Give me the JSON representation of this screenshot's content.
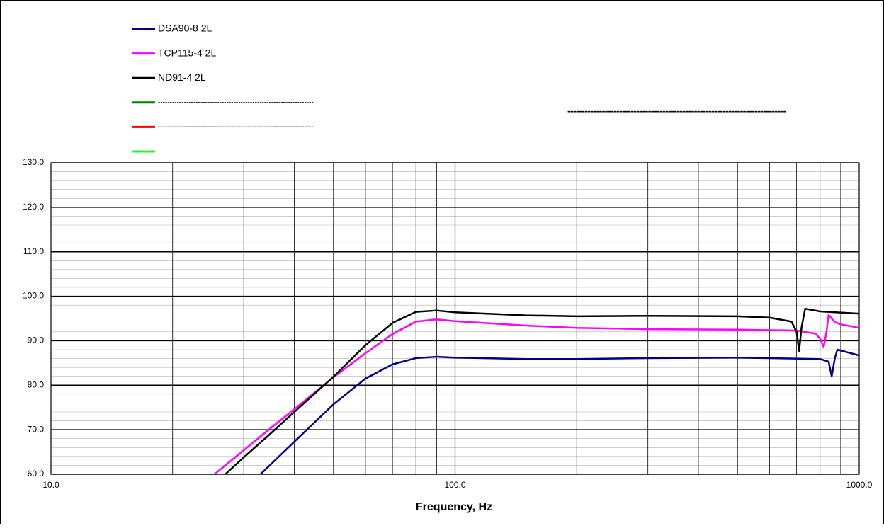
{
  "chart_data": {
    "type": "line",
    "xlabel": "Frequency, Hz",
    "annotation": "----------------------------------------------------------------------------",
    "xscale": "log",
    "grid": true,
    "xlim": [
      10,
      1000
    ],
    "xticks": [
      {
        "value": 10,
        "label": "10.0"
      },
      {
        "value": 100,
        "label": "100.0"
      },
      {
        "value": 1000,
        "label": "1000.0"
      }
    ],
    "xminorticks": [
      20,
      30,
      40,
      50,
      60,
      70,
      80,
      90,
      200,
      300,
      400,
      500,
      600,
      700,
      800,
      900
    ],
    "ylim": [
      60,
      130
    ],
    "yticks": [
      {
        "value": 60,
        "label": "60.0"
      },
      {
        "value": 70,
        "label": "70.0"
      },
      {
        "value": 80,
        "label": "80.0"
      },
      {
        "value": 90,
        "label": "90.0"
      },
      {
        "value": 100,
        "label": "100.0"
      },
      {
        "value": 110,
        "label": "110.0"
      },
      {
        "value": 120,
        "label": "120.0"
      },
      {
        "value": 130,
        "label": "130.0"
      }
    ],
    "yminorticks": [
      62,
      64,
      66,
      68,
      72,
      74,
      76,
      78,
      82,
      84,
      86,
      88,
      92,
      94,
      96,
      98,
      102,
      104,
      106,
      108,
      112,
      114,
      116,
      118,
      122,
      124,
      126,
      128
    ],
    "series": [
      {
        "name": "DSA90-8 2L",
        "color": "#000080",
        "x": [
          33,
          40,
          50,
          60,
          70,
          80,
          90,
          100,
          150,
          200,
          300,
          500,
          800,
          840,
          855,
          870,
          883,
          1000
        ],
        "values": [
          60,
          67.3,
          75.7,
          81.5,
          84.7,
          86.1,
          86.4,
          86.2,
          85.9,
          85.9,
          86.1,
          86.2,
          85.9,
          85.3,
          82.0,
          86.0,
          88.0,
          86.7
        ]
      },
      {
        "name": "TCP115-4 2L",
        "color": "#ff00ff",
        "x": [
          25,
          30,
          35,
          40,
          50,
          60,
          70,
          80,
          90,
          100,
          150,
          200,
          300,
          500,
          700,
          780,
          800,
          817,
          830,
          840,
          870,
          900,
          1000
        ],
        "values": [
          59.5,
          65.4,
          70.4,
          74.6,
          81.8,
          87.2,
          91.5,
          94.3,
          94.8,
          94.4,
          93.4,
          92.9,
          92.6,
          92.5,
          92.3,
          91.6,
          90.5,
          88.6,
          92.0,
          95.8,
          94.2,
          93.7,
          92.9
        ]
      },
      {
        "name": "ND91-4 2L",
        "color": "#000000",
        "x": [
          27,
          30,
          35,
          40,
          50,
          60,
          70,
          80,
          90,
          100,
          150,
          200,
          300,
          500,
          600,
          680,
          700,
          710,
          720,
          735,
          800,
          1000
        ],
        "values": [
          60,
          63.8,
          69.2,
          74.0,
          81.9,
          89.0,
          94.0,
          96.5,
          96.8,
          96.4,
          95.7,
          95.5,
          95.6,
          95.5,
          95.2,
          94.3,
          92.0,
          87.7,
          93.0,
          97.2,
          96.6,
          96.1
        ]
      },
      {
        "name": "------------------------------------------------------------------",
        "color": "#008000",
        "x": [],
        "values": []
      },
      {
        "name": "------------------------------------------------------------------",
        "color": "#ff0000",
        "x": [],
        "values": []
      },
      {
        "name": "------------------------------------------------------------------",
        "color": "#33ee33",
        "x": [],
        "values": []
      }
    ]
  }
}
